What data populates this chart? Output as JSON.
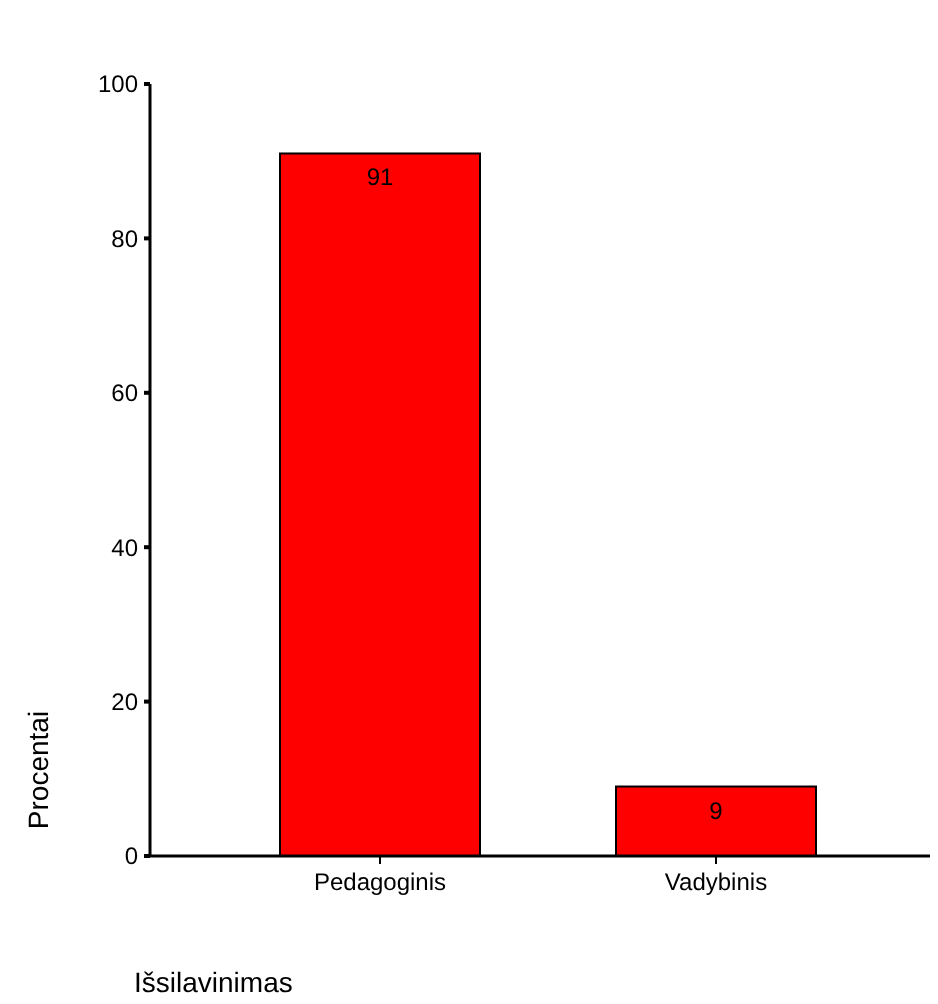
{
  "chart_data": {
    "type": "bar",
    "xlabel": "Išsilavinimas",
    "ylabel": "Procentai",
    "categories": [
      "Pedagoginis",
      "Vadybinis"
    ],
    "values": [
      91,
      9
    ],
    "color": "#ff0000",
    "ylim": [
      0,
      100
    ],
    "yticks": [
      0,
      20,
      40,
      60,
      80,
      100
    ],
    "data_labels": true,
    "grid": false
  }
}
